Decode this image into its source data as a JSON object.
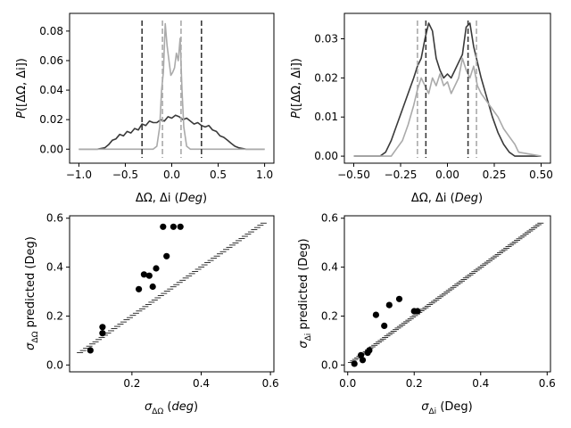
{
  "chart_data": [
    {
      "id": "p1",
      "type": "line",
      "xlabel": "ΔΩ, Δi (Deg)",
      "ylabel": "P([ΔΩ, Δi])",
      "xlim": [
        -1.1,
        1.1
      ],
      "ylim": [
        -0.0095,
        0.092
      ],
      "xticks": [
        -1.0,
        -0.5,
        0.0,
        0.5,
        1.0
      ],
      "xtick_labels": [
        "−1.0",
        "−0.5",
        "0.0",
        "0.5",
        "1.0"
      ],
      "yticks": [
        0.0,
        0.02,
        0.04,
        0.06,
        0.08
      ],
      "ytick_labels": [
        "0.00",
        "0.02",
        "0.04",
        "0.06",
        "0.08"
      ],
      "series": [
        {
          "name": "ΔΩ",
          "color": "#3a3a3a",
          "x": [
            -1.0,
            -0.8,
            -0.72,
            -0.68,
            -0.64,
            -0.6,
            -0.56,
            -0.52,
            -0.48,
            -0.44,
            -0.4,
            -0.36,
            -0.32,
            -0.28,
            -0.24,
            -0.2,
            -0.16,
            -0.12,
            -0.08,
            -0.04,
            0.0,
            0.04,
            0.08,
            0.12,
            0.16,
            0.2,
            0.24,
            0.28,
            0.32,
            0.36,
            0.4,
            0.44,
            0.48,
            0.52,
            0.56,
            0.6,
            0.64,
            0.68,
            0.72,
            0.8,
            1.0
          ],
          "values": [
            0.0,
            0.0,
            0.001,
            0.003,
            0.006,
            0.007,
            0.01,
            0.009,
            0.012,
            0.011,
            0.014,
            0.013,
            0.017,
            0.016,
            0.019,
            0.018,
            0.018,
            0.02,
            0.019,
            0.022,
            0.021,
            0.023,
            0.022,
            0.02,
            0.021,
            0.019,
            0.017,
            0.018,
            0.016,
            0.015,
            0.016,
            0.013,
            0.012,
            0.009,
            0.008,
            0.006,
            0.004,
            0.002,
            0.001,
            0.0,
            0.0
          ]
        },
        {
          "name": "Δi",
          "color": "#aaaaaa",
          "x": [
            -1.0,
            -0.2,
            -0.16,
            -0.13,
            -0.11,
            -0.09,
            -0.07,
            -0.05,
            -0.03,
            -0.01,
            0.01,
            0.03,
            0.05,
            0.07,
            0.09,
            0.11,
            0.13,
            0.16,
            0.2,
            1.0
          ],
          "values": [
            0.0,
            0.0,
            0.002,
            0.015,
            0.04,
            0.052,
            0.085,
            0.07,
            0.06,
            0.05,
            0.052,
            0.055,
            0.065,
            0.06,
            0.075,
            0.04,
            0.015,
            0.002,
            0.0,
            0.0
          ]
        }
      ],
      "vlines": [
        {
          "x": -0.32,
          "color": "#3a3a3a"
        },
        {
          "x": 0.32,
          "color": "#3a3a3a"
        },
        {
          "x": -0.1,
          "color": "#aaaaaa"
        },
        {
          "x": 0.1,
          "color": "#aaaaaa"
        }
      ]
    },
    {
      "id": "p2",
      "type": "line",
      "xlabel": "ΔΩ, Δi (Deg)",
      "ylabel": "P([ΔΩ, Δi])",
      "xlim": [
        -0.55,
        0.55
      ],
      "ylim": [
        -0.0018,
        0.0365
      ],
      "xticks": [
        -0.5,
        -0.25,
        0.0,
        0.25,
        0.5
      ],
      "xtick_labels": [
        "−0.50",
        "−0.25",
        "0.00",
        "0.25",
        "0.50"
      ],
      "yticks": [
        0.0,
        0.01,
        0.02,
        0.03
      ],
      "ytick_labels": [
        "0.00",
        "0.01",
        "0.02",
        "0.03"
      ],
      "series": [
        {
          "name": "ΔΩ",
          "color": "#3a3a3a",
          "x": [
            -0.5,
            -0.36,
            -0.33,
            -0.3,
            -0.27,
            -0.24,
            -0.21,
            -0.18,
            -0.16,
            -0.14,
            -0.12,
            -0.1,
            -0.08,
            -0.06,
            -0.04,
            -0.02,
            0.0,
            0.02,
            0.04,
            0.06,
            0.08,
            0.1,
            0.12,
            0.14,
            0.16,
            0.18,
            0.21,
            0.24,
            0.27,
            0.3,
            0.33,
            0.36,
            0.5
          ],
          "values": [
            0.0,
            0.0,
            0.001,
            0.004,
            0.008,
            0.012,
            0.016,
            0.02,
            0.023,
            0.025,
            0.03,
            0.034,
            0.032,
            0.025,
            0.022,
            0.02,
            0.021,
            0.02,
            0.022,
            0.024,
            0.026,
            0.033,
            0.034,
            0.028,
            0.024,
            0.02,
            0.015,
            0.01,
            0.006,
            0.003,
            0.001,
            0.0,
            0.0
          ]
        },
        {
          "name": "Δi",
          "color": "#aaaaaa",
          "x": [
            -0.5,
            -0.3,
            -0.27,
            -0.24,
            -0.21,
            -0.18,
            -0.16,
            -0.14,
            -0.12,
            -0.1,
            -0.08,
            -0.06,
            -0.04,
            -0.02,
            0.0,
            0.02,
            0.04,
            0.06,
            0.08,
            0.1,
            0.12,
            0.14,
            0.16,
            0.18,
            0.21,
            0.24,
            0.27,
            0.3,
            0.33,
            0.36,
            0.38,
            0.5
          ],
          "values": [
            0.0,
            0.0,
            0.002,
            0.004,
            0.008,
            0.013,
            0.017,
            0.02,
            0.018,
            0.016,
            0.02,
            0.018,
            0.021,
            0.018,
            0.019,
            0.016,
            0.018,
            0.02,
            0.025,
            0.022,
            0.02,
            0.023,
            0.018,
            0.016,
            0.014,
            0.012,
            0.01,
            0.007,
            0.005,
            0.003,
            0.001,
            0.0
          ]
        }
      ],
      "vlines": [
        {
          "x": -0.115,
          "color": "#3a3a3a"
        },
        {
          "x": 0.11,
          "color": "#3a3a3a"
        },
        {
          "x": -0.16,
          "color": "#aaaaaa"
        },
        {
          "x": 0.155,
          "color": "#aaaaaa"
        }
      ]
    },
    {
      "id": "p3",
      "type": "scatter",
      "xlabel": "σΔΩ (deg)",
      "ylabel": "σΔΩ predicted (Deg)",
      "xlim": [
        0.02,
        0.61
      ],
      "ylim": [
        -0.028,
        0.61
      ],
      "xticks": [
        0.2,
        0.4,
        0.6
      ],
      "xtick_labels": [
        "0.2",
        "0.4",
        "0.6"
      ],
      "yticks": [
        0.0,
        0.2,
        0.4,
        0.6
      ],
      "ytick_labels": [
        "0.0",
        "0.2",
        "0.4",
        "0.6"
      ],
      "points": {
        "color": "#000000",
        "x": [
          0.08,
          0.115,
          0.115,
          0.22,
          0.235,
          0.25,
          0.26,
          0.27,
          0.29,
          0.3,
          0.32,
          0.34
        ],
        "y": [
          0.06,
          0.13,
          0.155,
          0.31,
          0.37,
          0.365,
          0.32,
          0.395,
          0.565,
          0.445,
          0.565,
          0.565
        ]
      },
      "reference": {
        "x_start": 0.05,
        "x_end": 0.58,
        "count": 60
      }
    },
    {
      "id": "p4",
      "type": "scatter",
      "xlabel": "σΔi (Deg)",
      "ylabel": "σΔi predicted (Deg)",
      "xlim": [
        -0.01,
        0.61
      ],
      "ylim": [
        -0.028,
        0.61
      ],
      "xticks": [
        0.0,
        0.2,
        0.4,
        0.6
      ],
      "xtick_labels": [
        "0.0",
        "0.2",
        "0.4",
        "0.6"
      ],
      "yticks": [
        0.0,
        0.2,
        0.4,
        0.6
      ],
      "ytick_labels": [
        "0.0",
        "0.2",
        "0.4",
        "0.6"
      ],
      "points": {
        "color": "#000000",
        "x": [
          0.02,
          0.04,
          0.045,
          0.06,
          0.065,
          0.085,
          0.11,
          0.125,
          0.155,
          0.2,
          0.21
        ],
        "y": [
          0.005,
          0.04,
          0.02,
          0.05,
          0.06,
          0.205,
          0.16,
          0.245,
          0.27,
          0.22,
          0.22
        ]
      },
      "reference": {
        "x_start": 0.01,
        "x_end": 0.58,
        "count": 90
      }
    }
  ]
}
